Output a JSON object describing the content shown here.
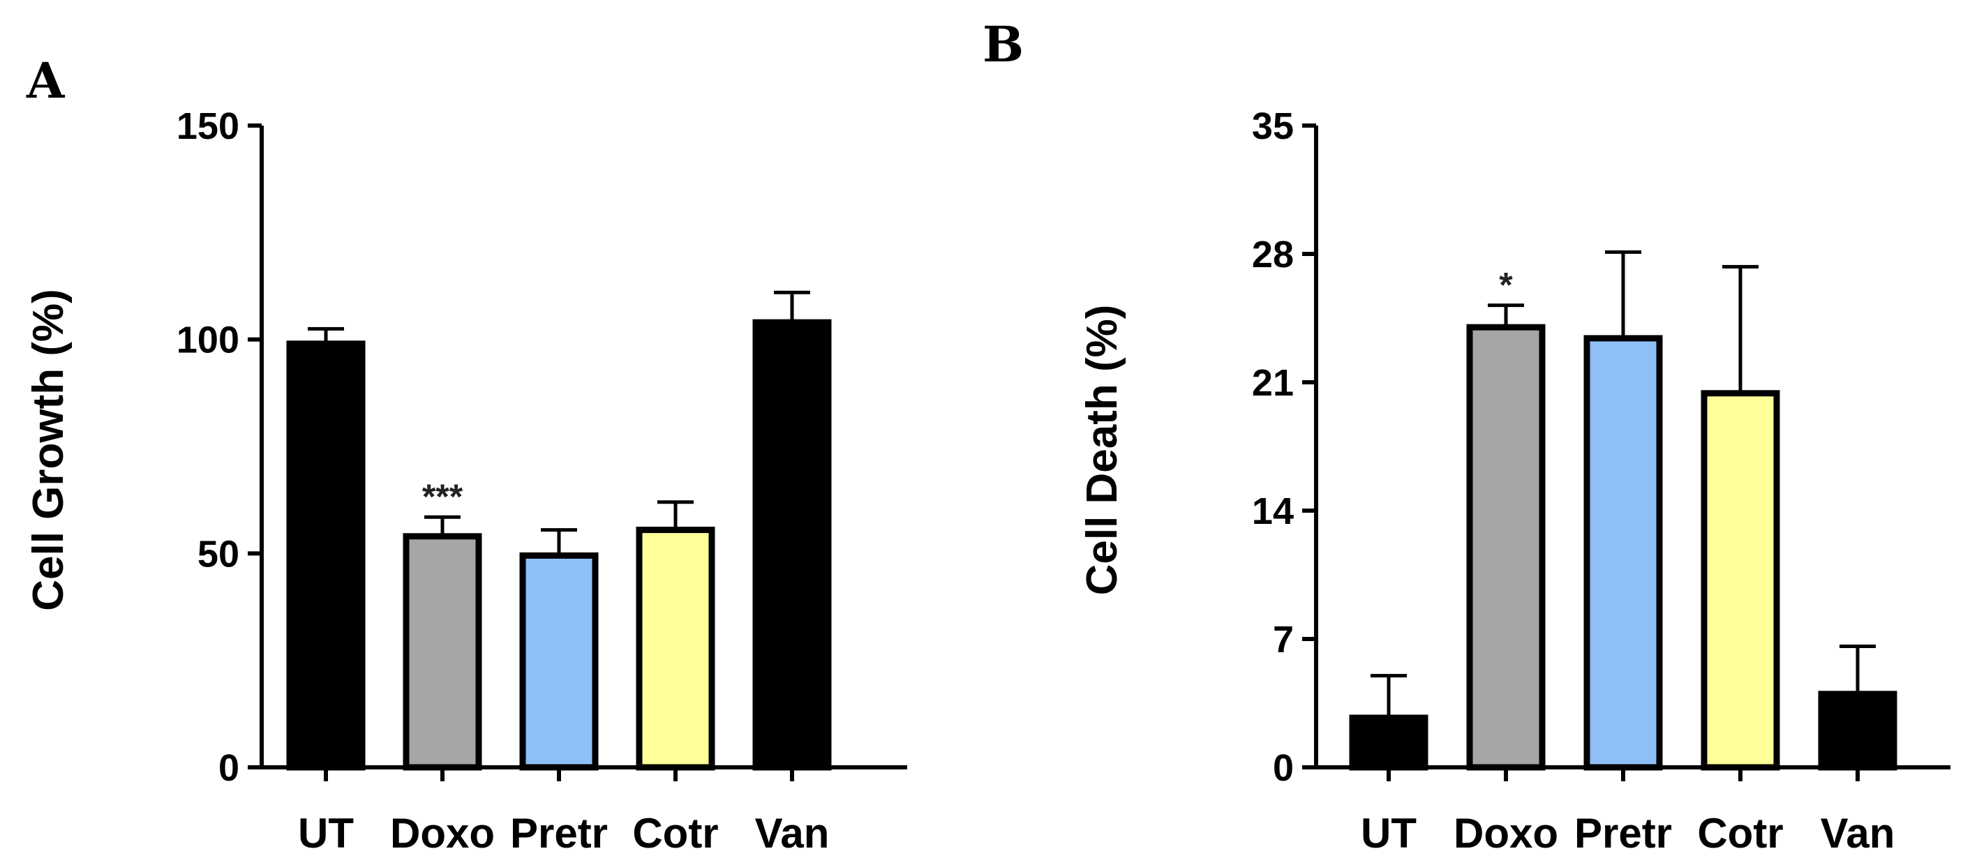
{
  "chart_data": [
    {
      "panel": "A",
      "type": "bar",
      "ylabel": "Cell Growth (%)",
      "xlabel": "",
      "ylim": [
        0,
        150
      ],
      "yticks": [
        0,
        50,
        100,
        150
      ],
      "categories": [
        "UT",
        "Doxo",
        "Pretr",
        "Cotr",
        "Van"
      ],
      "values": [
        99,
        54,
        49.5,
        55.5,
        104
      ],
      "errors": [
        3.5,
        4.5,
        6,
        6.5,
        7
      ],
      "colors": [
        "#000000",
        "#a6a6a8",
        "#8ec0f7",
        "#ffff99",
        "#000000"
      ],
      "significance": [
        "",
        "***",
        "",
        "",
        ""
      ]
    },
    {
      "panel": "B",
      "type": "bar",
      "ylabel": "Cell Death (%)",
      "xlabel": "",
      "ylim": [
        0,
        35
      ],
      "yticks": [
        0,
        7,
        14,
        21,
        28,
        35
      ],
      "categories": [
        "UT",
        "Doxo",
        "Pretr",
        "Cotr",
        "Van"
      ],
      "values": [
        2.7,
        24,
        23.4,
        20.4,
        4
      ],
      "errors": [
        2.3,
        1.2,
        4.7,
        6.9,
        2.6
      ],
      "colors": [
        "#000000",
        "#a6a6a8",
        "#8ec0f7",
        "#ffff99",
        "#000000"
      ],
      "significance": [
        "",
        "*",
        "",
        "",
        ""
      ]
    }
  ]
}
